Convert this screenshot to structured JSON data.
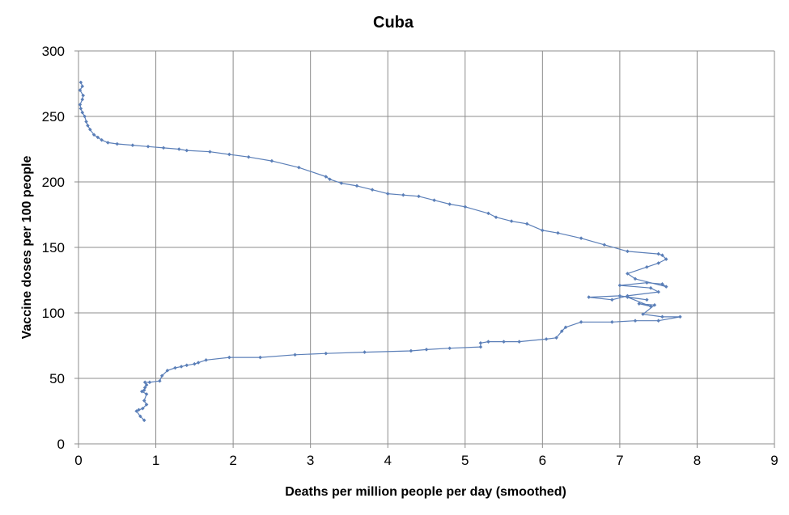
{
  "chart_data": {
    "type": "line",
    "title": "Cuba",
    "xlabel": "Deaths per million people per day (smoothed)",
    "ylabel": "Vaccine doses per 100 people",
    "xlim": [
      0,
      9
    ],
    "ylim": [
      0,
      300
    ],
    "x_ticks": [
      "0",
      "1",
      "2",
      "3",
      "4",
      "5",
      "6",
      "7",
      "8",
      "9"
    ],
    "y_ticks": [
      "0",
      "50",
      "100",
      "150",
      "200",
      "250",
      "300"
    ],
    "grid": true,
    "legend": "none",
    "colors": {
      "series": "#5b7fb8",
      "grid": "#8c8c8c",
      "axis": "#8c8c8c"
    },
    "series": [
      {
        "x": [
          0.85,
          0.8,
          0.75,
          0.78,
          0.83,
          0.88,
          0.85,
          0.88,
          0.82,
          0.85,
          0.86,
          0.88,
          0.86,
          0.92,
          1.05,
          1.08,
          1.15,
          1.25,
          1.33,
          1.4,
          1.5,
          1.55,
          1.65,
          1.95,
          2.35,
          2.8,
          3.2,
          3.7,
          4.3,
          4.5,
          4.8,
          5.2,
          5.2,
          5.3,
          5.5,
          5.7,
          6.05,
          6.18,
          6.25,
          6.3,
          6.5,
          6.9,
          7.2,
          7.5,
          7.78,
          7.55,
          7.3,
          7.45,
          7.25,
          7.4,
          7.1,
          7.35,
          7.0,
          6.6,
          6.9,
          7.1,
          7.5,
          7.4,
          7.0,
          7.35,
          7.55,
          7.6,
          7.2,
          7.1,
          7.35,
          7.5,
          7.6,
          7.55,
          7.5,
          7.1,
          6.8,
          6.5,
          6.2,
          6.0,
          5.8,
          5.6,
          5.4,
          5.3,
          5.0,
          4.8,
          4.6,
          4.4,
          4.2,
          4.0,
          3.8,
          3.6,
          3.4,
          3.25,
          3.2,
          2.85,
          2.5,
          2.2,
          1.95,
          1.7,
          1.4,
          1.3,
          1.1,
          0.9,
          0.7,
          0.5,
          0.38,
          0.3,
          0.25,
          0.2,
          0.15,
          0.12,
          0.1,
          0.08,
          0.05,
          0.03,
          0.02,
          0.05,
          0.06,
          0.02,
          0.05,
          0.03
        ],
        "y": [
          18,
          21,
          25,
          26,
          27,
          30,
          33,
          38,
          40,
          41,
          43,
          45,
          47,
          47,
          48,
          52,
          56,
          58,
          59,
          60,
          61,
          62,
          64,
          66,
          66,
          68,
          69,
          70,
          71,
          72,
          73,
          74,
          77,
          78,
          78,
          78,
          80,
          81,
          86,
          89,
          93,
          93,
          94,
          94,
          97,
          97,
          99,
          106,
          107,
          105,
          112,
          110,
          113,
          112,
          110,
          113,
          116,
          119,
          121,
          123,
          122,
          120,
          126,
          130,
          135,
          138,
          141,
          144,
          145,
          147,
          152,
          157,
          161,
          163,
          168,
          170,
          173,
          176,
          181,
          183,
          186,
          189,
          190,
          191,
          194,
          197,
          199,
          202,
          204,
          211,
          216,
          219,
          221,
          223,
          224,
          225,
          226,
          227,
          228,
          229,
          230,
          232,
          234,
          236,
          240,
          243,
          246,
          250,
          253,
          256,
          259,
          263,
          266,
          270,
          273,
          276
        ]
      }
    ]
  }
}
